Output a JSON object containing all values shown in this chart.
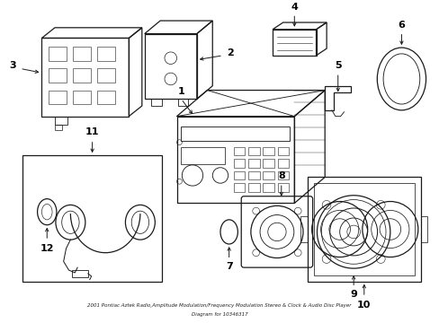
{
  "title": "2001 Pontiac Aztek Radio,Amplitude Modulation/Frequency Modulation Stereo & Clock & Audio Disc Player Diagram for 10346317",
  "bg_color": "#ffffff",
  "line_color": "#1a1a1a",
  "label_color": "#000000",
  "figsize": [
    4.89,
    3.6
  ],
  "dpi": 100
}
